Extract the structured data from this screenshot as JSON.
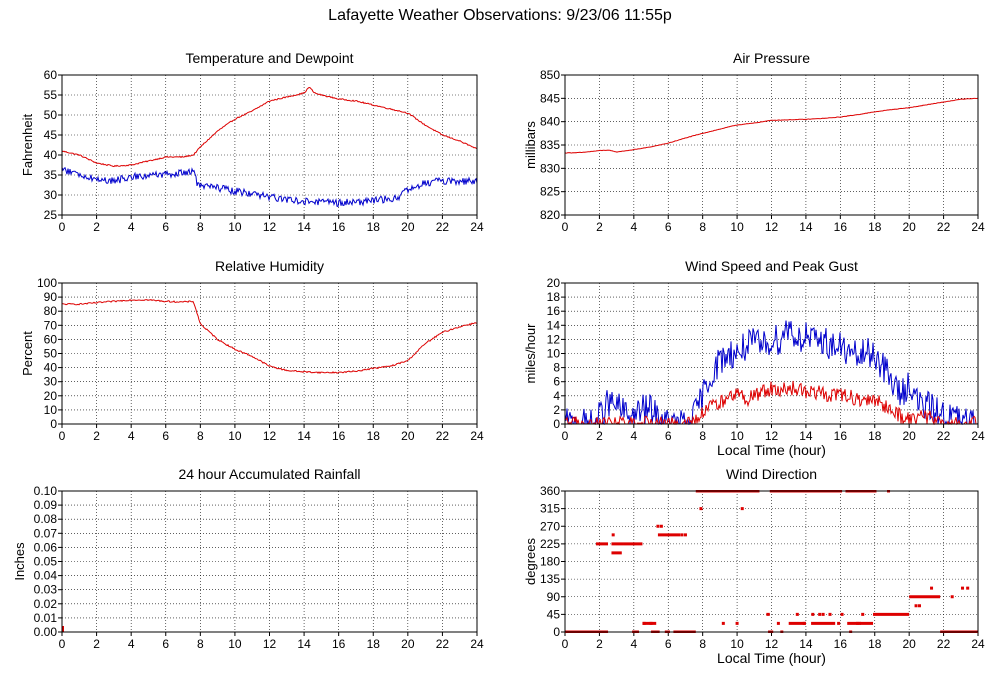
{
  "page_title": "Lafayette Weather Observations: 9/23/06 11:55p",
  "colors": {
    "red": "#dd0000",
    "blue": "#0000cc",
    "grid": "#000000",
    "axis": "#000000"
  },
  "chart_data": [
    {
      "id": "temperature-dewpoint",
      "type": "line",
      "title": "Temperature and Dewpoint",
      "xlabel": "",
      "ylabel": "Fahrenheit",
      "xlim": [
        0,
        24
      ],
      "ylim": [
        25,
        60
      ],
      "xticks": [
        0,
        2,
        4,
        6,
        8,
        10,
        12,
        14,
        16,
        18,
        20,
        22,
        24
      ],
      "yticks": [
        25,
        30,
        35,
        40,
        45,
        50,
        55,
        60
      ],
      "ytick_labels": [
        "25",
        "30",
        "35",
        "40",
        "45",
        "50",
        "55",
        "60"
      ],
      "grid": true,
      "series": [
        {
          "color": "#dd0000",
          "noise": 0.15,
          "x": [
            0,
            1,
            2,
            3,
            4,
            5,
            6,
            7,
            7.6,
            8,
            9,
            10,
            11,
            12,
            13,
            14,
            14.3,
            14.6,
            15,
            16,
            17,
            18,
            19,
            20,
            21,
            22,
            23,
            24
          ],
          "y": [
            41,
            40,
            38,
            37.2,
            37.5,
            38.5,
            39.5,
            39.5,
            40,
            42,
            46,
            49,
            51,
            53.5,
            54.5,
            55.5,
            57,
            55.5,
            55,
            54,
            53.5,
            52.5,
            51.5,
            50.5,
            47.5,
            45,
            43.5,
            41.5
          ]
        },
        {
          "color": "#0000cc",
          "noise": 0.9,
          "x": [
            0,
            1,
            2,
            3,
            4,
            5,
            6,
            7,
            7.6,
            7.8,
            8,
            10,
            12,
            14,
            16,
            18,
            19.5,
            20,
            21,
            22,
            23,
            24
          ],
          "y": [
            36.5,
            35,
            34,
            33.5,
            34.5,
            35,
            35,
            35.5,
            36,
            33,
            32.5,
            31,
            29.5,
            28.5,
            28,
            28.5,
            29.5,
            31.5,
            33,
            33.5,
            33.5,
            33.3
          ]
        }
      ]
    },
    {
      "id": "air-pressure",
      "type": "line",
      "title": "Air Pressure",
      "xlabel": "",
      "ylabel": "millibars",
      "xlim": [
        0,
        24
      ],
      "ylim": [
        820,
        850
      ],
      "xticks": [
        0,
        2,
        4,
        6,
        8,
        10,
        12,
        14,
        16,
        18,
        20,
        22,
        24
      ],
      "yticks": [
        820,
        825,
        830,
        835,
        840,
        845,
        850
      ],
      "ytick_labels": [
        "820",
        "825",
        "830",
        "835",
        "840",
        "845",
        "850"
      ],
      "grid": true,
      "series": [
        {
          "color": "#dd0000",
          "noise": 0.05,
          "x": [
            0,
            1,
            2,
            2.5,
            3,
            4,
            5,
            6,
            7,
            8,
            9,
            10,
            11,
            12,
            13,
            14,
            15,
            16,
            17,
            18,
            19,
            20,
            21,
            22,
            23,
            24
          ],
          "y": [
            833.3,
            833.4,
            833.8,
            833.9,
            833.5,
            834,
            834.6,
            835.4,
            836.5,
            837.5,
            838.4,
            839.3,
            839.7,
            840.3,
            840.4,
            840.5,
            840.7,
            841,
            841.5,
            842.1,
            842.6,
            843,
            843.6,
            844.2,
            844.8,
            845
          ]
        }
      ]
    },
    {
      "id": "relative-humidity",
      "type": "line",
      "title": "Relative Humidity",
      "xlabel": "",
      "ylabel": "Percent",
      "xlim": [
        0,
        24
      ],
      "ylim": [
        0,
        100
      ],
      "xticks": [
        0,
        2,
        4,
        6,
        8,
        10,
        12,
        14,
        16,
        18,
        20,
        22,
        24
      ],
      "yticks": [
        0,
        10,
        20,
        30,
        40,
        50,
        60,
        70,
        80,
        90,
        100
      ],
      "ytick_labels": [
        "0",
        "10",
        "20",
        "30",
        "40",
        "50",
        "60",
        "70",
        "80",
        "90",
        "100"
      ],
      "grid": true,
      "series": [
        {
          "color": "#dd0000",
          "noise": 0.5,
          "x": [
            0,
            1,
            2,
            3,
            4,
            5,
            6,
            7,
            7.6,
            8,
            9,
            10,
            11,
            12,
            13,
            14,
            15,
            16,
            17,
            18,
            19,
            20,
            21,
            22,
            23,
            24
          ],
          "y": [
            85,
            85,
            86,
            87,
            88,
            88,
            87,
            86.5,
            87,
            71,
            60,
            53,
            48,
            41,
            38,
            37,
            36.5,
            36.5,
            37.5,
            39.5,
            41,
            45,
            57,
            65,
            69,
            72
          ]
        }
      ]
    },
    {
      "id": "wind-speed-gust",
      "type": "line",
      "title": "Wind Speed and Peak Gust",
      "xlabel": "Local Time (hour)",
      "ylabel": "miles/hour",
      "xlim": [
        0,
        24
      ],
      "ylim": [
        0,
        20
      ],
      "xticks": [
        0,
        2,
        4,
        6,
        8,
        10,
        12,
        14,
        16,
        18,
        20,
        22,
        24
      ],
      "yticks": [
        0,
        2,
        4,
        6,
        8,
        10,
        12,
        14,
        16,
        18,
        20
      ],
      "ytick_labels": [
        "0",
        "2",
        "4",
        "6",
        "8",
        "10",
        "12",
        "14",
        "16",
        "18",
        "20"
      ],
      "grid": true,
      "series": [
        {
          "color": "#0000cc",
          "noise": 2.2,
          "floor": 0,
          "x": [
            0,
            1.7,
            1.8,
            2,
            2.5,
            3,
            3.5,
            4,
            4.5,
            5,
            5.5,
            6,
            7,
            7.5,
            8,
            8.5,
            9,
            9.5,
            10,
            10.5,
            11,
            11.5,
            12,
            12.5,
            13,
            13.5,
            14,
            14.5,
            15,
            15.5,
            16,
            16.5,
            17,
            17.5,
            18,
            18.5,
            19,
            19.5,
            20,
            20.5,
            21,
            21.5,
            22,
            22.5,
            23,
            23.5,
            24
          ],
          "y": [
            0,
            0,
            0.5,
            1,
            3,
            2.5,
            1.5,
            1,
            2,
            2,
            0.5,
            0,
            0,
            1,
            4,
            7,
            9,
            10,
            10,
            11,
            11.5,
            11,
            12,
            12,
            14,
            12,
            12.5,
            11.5,
            12,
            11,
            11,
            10,
            9.5,
            10,
            10,
            8,
            6,
            4,
            6,
            3,
            2.5,
            2,
            1.2,
            1,
            0.5,
            0,
            0
          ]
        },
        {
          "color": "#dd0000",
          "noise": 1.1,
          "floor": 0,
          "x": [
            0,
            7.5,
            8,
            8.5,
            9,
            9.5,
            10,
            10.5,
            11,
            11.5,
            12,
            12.5,
            13,
            13.5,
            14,
            14.5,
            15,
            15.5,
            16,
            16.5,
            17,
            17.5,
            18,
            18.5,
            19,
            19.5,
            20,
            20.5,
            21,
            21.5,
            22,
            24
          ],
          "y": [
            0,
            0,
            1.5,
            2.5,
            3,
            3.5,
            4,
            3.5,
            4,
            4.5,
            5,
            5,
            5,
            5,
            4.5,
            4.5,
            4.5,
            4,
            4,
            4,
            3.5,
            3.5,
            3.5,
            2.5,
            2,
            1.2,
            0.5,
            1,
            1,
            0.5,
            0,
            0
          ]
        }
      ]
    },
    {
      "id": "accumulated-rainfall",
      "type": "line",
      "title": "24 hour Accumulated Rainfall",
      "xlabel": "",
      "ylabel": "Inches",
      "xlim": [
        0,
        24
      ],
      "ylim": [
        0,
        0.1
      ],
      "xticks": [
        0,
        2,
        4,
        6,
        8,
        10,
        12,
        14,
        16,
        18,
        20,
        22,
        24
      ],
      "yticks": [
        0,
        0.01,
        0.02,
        0.03,
        0.04,
        0.05,
        0.06,
        0.07,
        0.08,
        0.09,
        0.1
      ],
      "ytick_labels": [
        "0.00",
        "0.01",
        "0.02",
        "0.03",
        "0.04",
        "0.05",
        "0.06",
        "0.07",
        "0.08",
        "0.09",
        "0.10"
      ],
      "grid": true,
      "series": [
        {
          "color": "#dd0000",
          "noise": 0,
          "x": [
            0,
            24
          ],
          "y": [
            0,
            0
          ]
        }
      ]
    },
    {
      "id": "wind-direction",
      "type": "scatter",
      "title": "Wind Direction",
      "xlabel": "Local Time (hour)",
      "ylabel": "degrees",
      "xlim": [
        0,
        24
      ],
      "ylim": [
        0,
        360
      ],
      "xticks": [
        0,
        2,
        4,
        6,
        8,
        10,
        12,
        14,
        16,
        18,
        20,
        22,
        24
      ],
      "yticks": [
        0,
        45,
        90,
        135,
        180,
        225,
        270,
        315,
        360
      ],
      "ytick_labels": [
        "0",
        "45",
        "90",
        "135",
        "180",
        "225",
        "270",
        "315",
        "360"
      ],
      "grid": true,
      "series": [
        {
          "color": "#dd0000",
          "segments": [
            {
              "x0": 0,
              "x1": 2.5,
              "y": 0
            },
            {
              "x0": 1.8,
              "x1": 2.5,
              "y": 225
            },
            {
              "x0": 2.7,
              "x1": 3.4,
              "y": 225
            },
            {
              "x0": 2.7,
              "x1": 3.3,
              "y": 202
            },
            {
              "x0": 3.4,
              "x1": 4.5,
              "y": 225
            },
            {
              "x0": 3.9,
              "x1": 4.3,
              "y": 0
            },
            {
              "x0": 4.5,
              "x1": 5.3,
              "y": 22
            },
            {
              "x0": 5.0,
              "x1": 5.5,
              "y": 0
            },
            {
              "x0": 5.4,
              "x1": 6.7,
              "y": 248
            },
            {
              "x0": 5.8,
              "x1": 6.1,
              "y": 0
            },
            {
              "x0": 6.3,
              "x1": 7.6,
              "y": 0
            },
            {
              "x0": 7.6,
              "x1": 11.3,
              "y": 360
            },
            {
              "x0": 11.9,
              "x1": 16.1,
              "y": 360
            },
            {
              "x0": 16.3,
              "x1": 18.1,
              "y": 360
            },
            {
              "x0": 11.8,
              "x1": 12.1,
              "y": 0
            },
            {
              "x0": 11.7,
              "x1": 11.9,
              "y": 45
            },
            {
              "x0": 13,
              "x1": 14,
              "y": 22
            },
            {
              "x0": 14.3,
              "x1": 15.7,
              "y": 22
            },
            {
              "x0": 16.4,
              "x1": 17.2,
              "y": 22
            },
            {
              "x0": 17.1,
              "x1": 17.9,
              "y": 22
            },
            {
              "x0": 17.9,
              "x1": 20,
              "y": 45
            },
            {
              "x0": 20,
              "x1": 21.8,
              "y": 90
            },
            {
              "x0": 21.8,
              "x1": 24,
              "y": 0
            }
          ],
          "points": [
            [
              5.4,
              270
            ],
            [
              5.6,
              270
            ],
            [
              6.8,
              248
            ],
            [
              7.0,
              248
            ],
            [
              2.8,
              248
            ],
            [
              7.9,
              315
            ],
            [
              10.3,
              315
            ],
            [
              9.2,
              22
            ],
            [
              10.0,
              22
            ],
            [
              4.6,
              22
            ],
            [
              5.0,
              22
            ],
            [
              12.6,
              0
            ],
            [
              13.5,
              45
            ],
            [
              14.4,
              45
            ],
            [
              15.0,
              45
            ],
            [
              15.4,
              45
            ],
            [
              16.1,
              45
            ],
            [
              16.6,
              0
            ],
            [
              17.3,
              45
            ],
            [
              18.8,
              360
            ],
            [
              17.0,
              22
            ],
            [
              20.4,
              67
            ],
            [
              20.6,
              67
            ],
            [
              21.3,
              112
            ],
            [
              22.5,
              90
            ],
            [
              23.1,
              112
            ],
            [
              23.4,
              112
            ],
            [
              12.4,
              22
            ],
            [
              13.9,
              22
            ],
            [
              14.8,
              45
            ],
            [
              15.9,
              22
            ]
          ]
        }
      ]
    }
  ]
}
